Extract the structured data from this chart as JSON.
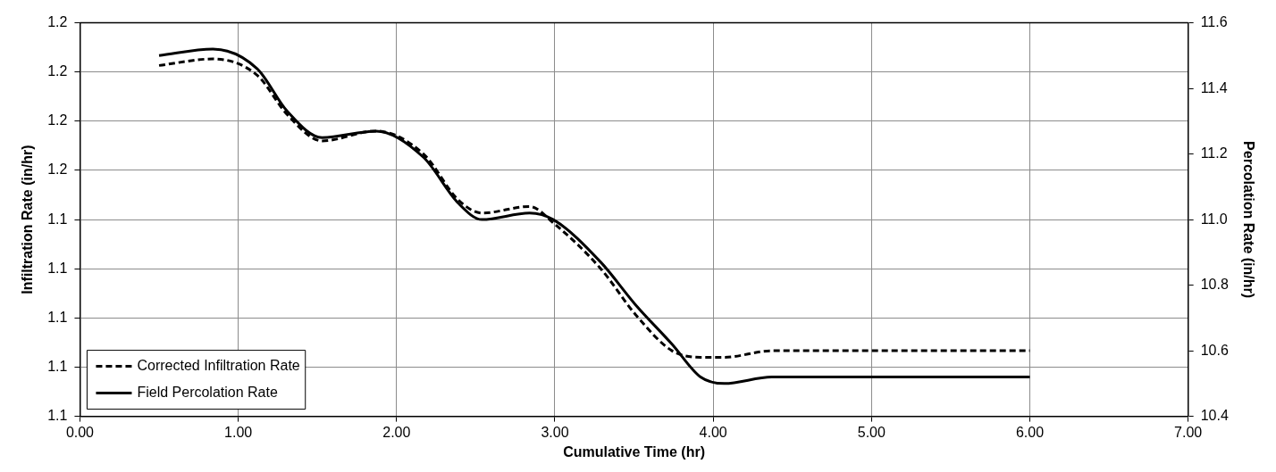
{
  "chart_data": {
    "type": "line",
    "xlabel": "Cumulative Time (hr)",
    "ylabel": "Infiltration Rate (in/hr)",
    "y2label": "Percolation Rate (in/hr)",
    "x": [
      0.5,
      0.84,
      1.12,
      1.31,
      1.53,
      1.87,
      2.17,
      2.39,
      2.54,
      2.84,
      2.99,
      3.29,
      3.51,
      3.74,
      3.92,
      4.07,
      4.37,
      5.0,
      6.0
    ],
    "series": [
      {
        "name": "Corrected Infiltration Rate",
        "color": "#000000",
        "line_style": "dashed",
        "values": [
          1.192,
          1.194,
          1.189,
          1.177,
          1.169,
          1.172,
          1.165,
          1.151,
          1.147,
          1.149,
          1.144,
          1.13,
          1.116,
          1.105,
          1.103,
          1.103,
          1.105,
          1.105,
          1.105
        ]
      },
      {
        "name": "Field Percolation Rate",
        "color": "#000000",
        "line_style": "solid",
        "axis": "y2",
        "values": [
          11.5,
          11.52,
          11.46,
          11.33,
          11.25,
          11.27,
          11.19,
          11.05,
          11.0,
          11.02,
          11.0,
          10.87,
          10.74,
          10.62,
          10.52,
          10.5,
          10.52,
          10.52,
          10.52
        ]
      }
    ],
    "xlim": [
      0,
      7
    ],
    "xticks": [
      {
        "value": 0,
        "label": "0.00"
      },
      {
        "value": 1,
        "label": "1.00"
      },
      {
        "value": 2,
        "label": "2.00"
      },
      {
        "value": 3,
        "label": "3.00"
      },
      {
        "value": 4,
        "label": "4.00"
      },
      {
        "value": 5,
        "label": "5.00"
      },
      {
        "value": 6,
        "label": "6.00"
      },
      {
        "value": 7,
        "label": "7.00"
      }
    ],
    "ylim": [
      1.085,
      1.205
    ],
    "yticks": [
      {
        "value": 1.085,
        "label": "1.1"
      },
      {
        "value": 1.1,
        "label": "1.1"
      },
      {
        "value": 1.115,
        "label": "1.1"
      },
      {
        "value": 1.13,
        "label": "1.1"
      },
      {
        "value": 1.145,
        "label": "1.1"
      },
      {
        "value": 1.16,
        "label": "1.2"
      },
      {
        "value": 1.175,
        "label": "1.2"
      },
      {
        "value": 1.19,
        "label": "1.2"
      },
      {
        "value": 1.205,
        "label": "1.2"
      }
    ],
    "y2lim": [
      10.4,
      11.6
    ],
    "y2ticks": [
      {
        "value": 10.4,
        "label": "10.4"
      },
      {
        "value": 10.6,
        "label": "10.6"
      },
      {
        "value": 10.8,
        "label": "10.8"
      },
      {
        "value": 11.0,
        "label": "11.0"
      },
      {
        "value": 11.2,
        "label": "11.2"
      },
      {
        "value": 11.4,
        "label": "11.4"
      },
      {
        "value": 11.6,
        "label": "11.6"
      }
    ],
    "grid": true,
    "legend": "bottom left",
    "marker": "none"
  }
}
